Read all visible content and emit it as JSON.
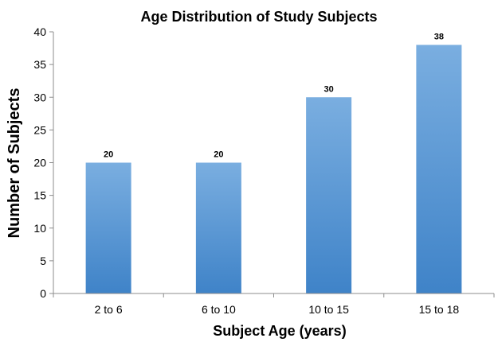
{
  "chart_data": {
    "type": "bar",
    "title": "Age Distribution of Study Subjects",
    "xlabel": "Subject Age (years)",
    "ylabel": "Number of Subjects",
    "categories": [
      "2 to 6",
      "6 to 10",
      "10 to 15",
      "15 to 18"
    ],
    "values": [
      20,
      20,
      30,
      38
    ],
    "data_labels": [
      "20",
      "20",
      "30",
      "38"
    ],
    "ylim": [
      0,
      40
    ],
    "yticks": [
      0,
      5,
      10,
      15,
      20,
      25,
      30,
      35,
      40
    ],
    "ytick_labels": [
      "0",
      "5",
      "10",
      "15",
      "20",
      "25",
      "30",
      "35",
      "40"
    ],
    "grid": false,
    "legend": "none",
    "bar_color_top": "#7aaee0",
    "bar_color_bottom": "#3f83c8",
    "axis_color": "#8c8c8c"
  }
}
